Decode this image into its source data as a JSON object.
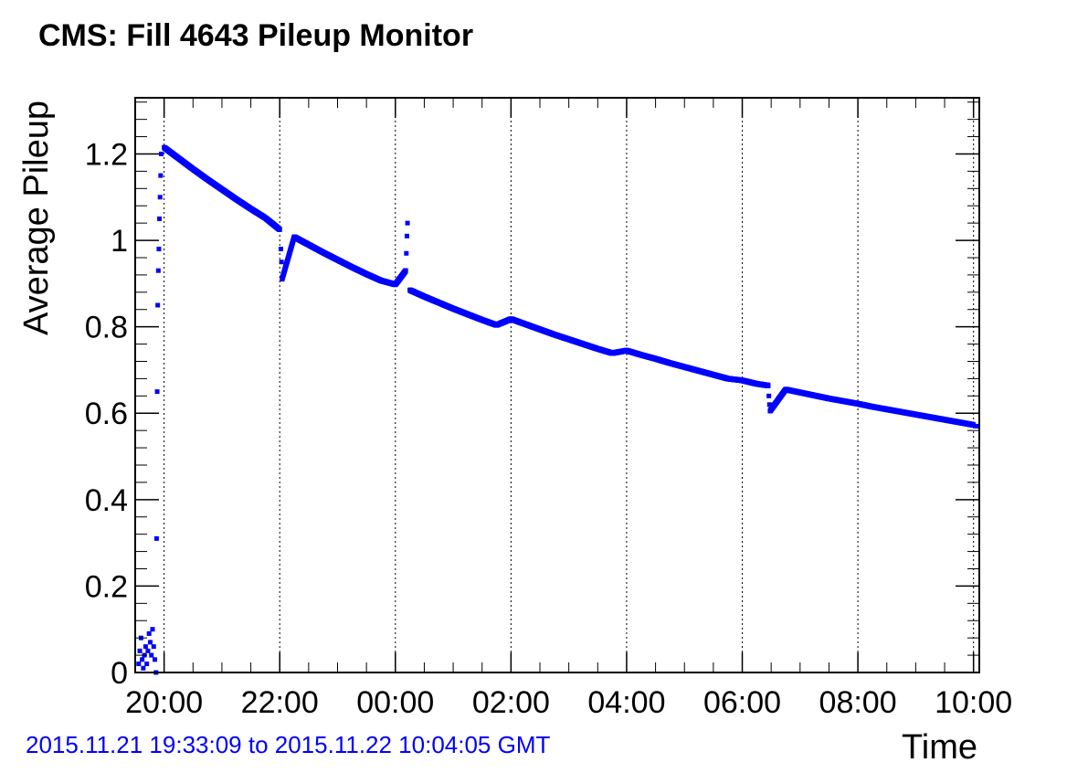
{
  "title": "CMS: Fill 4643 Pileup Monitor",
  "time_range_label": "2015.11.21 19:33:09 to 2015.11.22 10:04:05 GMT",
  "colors": {
    "series": "#0000ff",
    "axis": "#000000",
    "grid": "#000000",
    "time_range_text": "#0000ff"
  },
  "chart_data": {
    "type": "scatter",
    "xlabel": "Time",
    "ylabel": "Average Pileup",
    "x_unit": "hours since 2015.11.21 00:00 GMT",
    "xlim": [
      19.5,
      34.1
    ],
    "ylim": [
      0,
      1.33
    ],
    "x_ticks": [
      {
        "value": 20,
        "label": "20:00"
      },
      {
        "value": 22,
        "label": "22:00"
      },
      {
        "value": 24,
        "label": "00:00"
      },
      {
        "value": 26,
        "label": "02:00"
      },
      {
        "value": 28,
        "label": "04:00"
      },
      {
        "value": 30,
        "label": "06:00"
      },
      {
        "value": 32,
        "label": "08:00"
      },
      {
        "value": 34,
        "label": "10:00"
      }
    ],
    "y_ticks": [
      {
        "value": 0,
        "label": "0"
      },
      {
        "value": 0.2,
        "label": "0.2"
      },
      {
        "value": 0.4,
        "label": "0.4"
      },
      {
        "value": 0.6,
        "label": "0.6"
      },
      {
        "value": 0.8,
        "label": "0.8"
      },
      {
        "value": 1.0,
        "label": "1"
      },
      {
        "value": 1.2,
        "label": "1.2"
      }
    ],
    "grid": {
      "x": true,
      "y": false
    },
    "series": [
      {
        "points": [
          [
            19.56,
            0.02
          ],
          [
            19.58,
            0.05
          ],
          [
            19.6,
            0.08
          ],
          [
            19.62,
            0.03
          ],
          [
            19.64,
            0.01
          ],
          [
            19.66,
            0.04
          ],
          [
            19.68,
            0.06
          ],
          [
            19.7,
            0.02
          ],
          [
            19.72,
            0.05
          ],
          [
            19.74,
            0.09
          ],
          [
            19.76,
            0.07
          ],
          [
            19.78,
            0.04
          ],
          [
            19.8,
            0.1
          ],
          [
            19.82,
            0.06
          ],
          [
            19.84,
            0.03
          ],
          [
            19.86,
            0.0
          ],
          [
            19.87,
            0.31
          ],
          [
            19.88,
            0.65
          ],
          [
            19.89,
            0.85
          ],
          [
            19.9,
            0.93
          ],
          [
            19.91,
            0.98
          ],
          [
            19.92,
            1.05
          ],
          [
            19.93,
            1.1
          ],
          [
            19.94,
            1.15
          ],
          [
            19.95,
            1.2
          ],
          [
            20.0,
            1.215
          ],
          [
            20.25,
            1.19
          ],
          [
            20.5,
            1.165
          ],
          [
            20.75,
            1.141
          ],
          [
            21.0,
            1.118
          ],
          [
            21.25,
            1.095
          ],
          [
            21.5,
            1.073
          ],
          [
            21.75,
            1.052
          ],
          [
            22.0,
            1.025
          ],
          [
            22.02,
            0.98
          ],
          [
            22.03,
            0.95
          ],
          [
            22.04,
            0.91
          ],
          [
            22.25,
            1.008
          ],
          [
            22.5,
            0.99
          ],
          [
            22.75,
            0.972
          ],
          [
            23.0,
            0.955
          ],
          [
            23.25,
            0.938
          ],
          [
            23.5,
            0.922
          ],
          [
            23.75,
            0.907
          ],
          [
            24.0,
            0.898
          ],
          [
            24.18,
            0.93
          ],
          [
            24.19,
            0.97
          ],
          [
            24.2,
            1.01
          ],
          [
            24.21,
            1.04
          ],
          [
            24.25,
            0.885
          ],
          [
            24.5,
            0.87
          ],
          [
            24.75,
            0.856
          ],
          [
            25.0,
            0.842
          ],
          [
            25.25,
            0.829
          ],
          [
            25.5,
            0.816
          ],
          [
            25.75,
            0.804
          ],
          [
            26.0,
            0.818
          ],
          [
            26.25,
            0.806
          ],
          [
            26.5,
            0.794
          ],
          [
            26.75,
            0.782
          ],
          [
            27.0,
            0.771
          ],
          [
            27.25,
            0.76
          ],
          [
            27.5,
            0.749
          ],
          [
            27.75,
            0.739
          ],
          [
            28.0,
            0.745
          ],
          [
            28.25,
            0.735
          ],
          [
            28.5,
            0.726
          ],
          [
            28.75,
            0.716
          ],
          [
            29.0,
            0.707
          ],
          [
            29.25,
            0.698
          ],
          [
            29.5,
            0.689
          ],
          [
            29.75,
            0.68
          ],
          [
            30.0,
            0.676
          ],
          [
            30.25,
            0.668
          ],
          [
            30.45,
            0.664
          ],
          [
            30.46,
            0.64
          ],
          [
            30.47,
            0.62
          ],
          [
            30.48,
            0.605
          ],
          [
            30.75,
            0.655
          ],
          [
            31.0,
            0.648
          ],
          [
            31.25,
            0.641
          ],
          [
            31.5,
            0.634
          ],
          [
            31.75,
            0.628
          ],
          [
            32.0,
            0.622
          ],
          [
            32.25,
            0.615
          ],
          [
            32.5,
            0.609
          ],
          [
            32.75,
            0.603
          ],
          [
            33.0,
            0.597
          ],
          [
            33.25,
            0.591
          ],
          [
            33.5,
            0.585
          ],
          [
            33.75,
            0.579
          ],
          [
            34.0,
            0.573
          ],
          [
            34.05,
            0.57
          ]
        ]
      }
    ]
  }
}
